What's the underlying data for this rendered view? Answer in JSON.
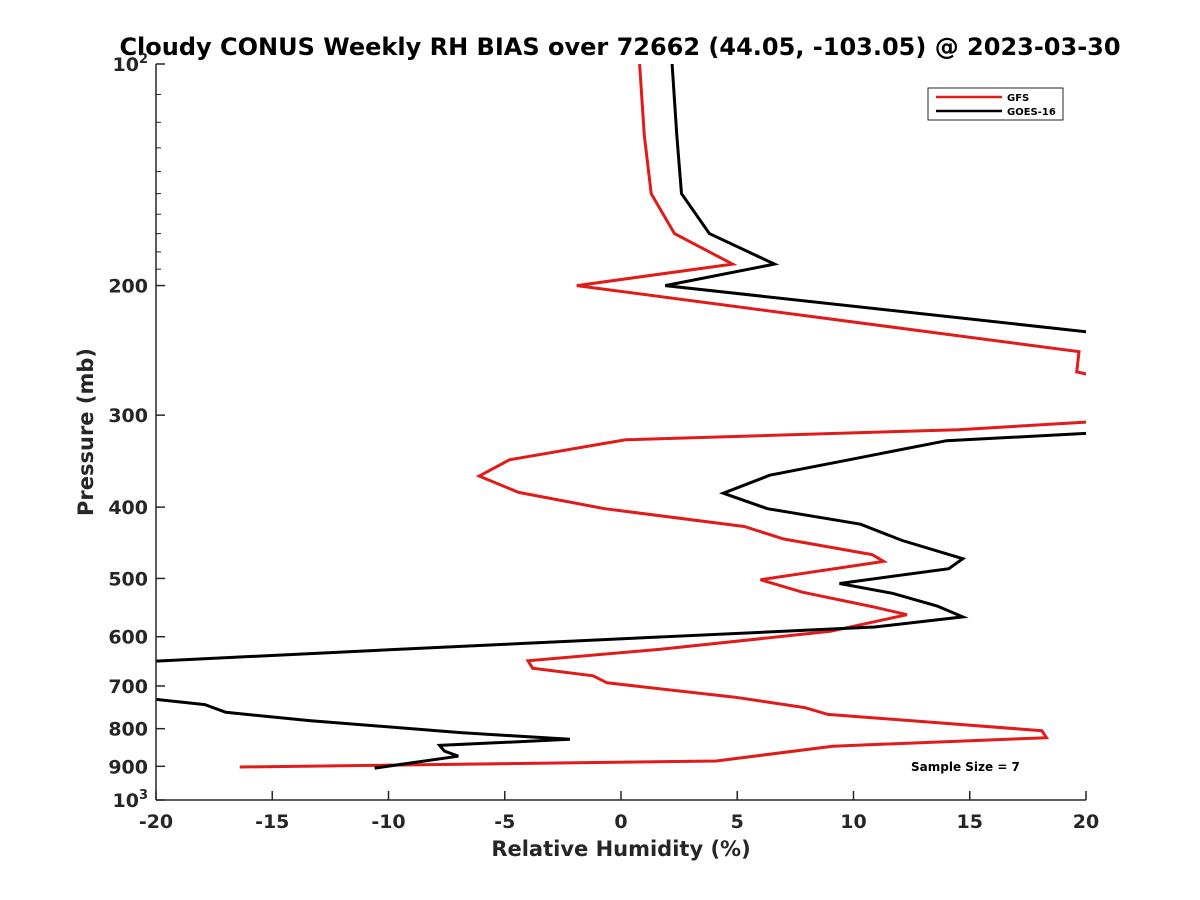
{
  "chart_data": {
    "type": "line",
    "title": "Cloudy CONUS Weekly RH BIAS over 72662 (44.05, -103.05) @ 2023-03-30",
    "xlabel": "Relative Humidity (%)",
    "ylabel": "Pressure (mb)",
    "xlim": [
      -20,
      20
    ],
    "ylim": [
      100,
      1000
    ],
    "y_scale": "log",
    "y_reversed": true,
    "grid": false,
    "legend_position": "top-right",
    "annotation": "Sample Size = 7",
    "x_ticks": [
      -20,
      -15,
      -10,
      -5,
      0,
      5,
      10,
      15,
      20
    ],
    "x_tick_labels": [
      "-20",
      "-15",
      "-10",
      "-5",
      "0",
      "5",
      "10",
      "15",
      "20"
    ],
    "y_ticks": [
      {
        "value": 100,
        "base": "10",
        "exp": "2"
      },
      {
        "value": 200,
        "label": "200"
      },
      {
        "value": 300,
        "label": "300"
      },
      {
        "value": 400,
        "label": "400"
      },
      {
        "value": 500,
        "label": "500"
      },
      {
        "value": 600,
        "label": "600"
      },
      {
        "value": 700,
        "label": "700"
      },
      {
        "value": 800,
        "label": "800"
      },
      {
        "value": 900,
        "label": "900"
      },
      {
        "value": 1000,
        "base": "10",
        "exp": "3"
      }
    ],
    "series": [
      {
        "name": "GFS",
        "color": "#e11a1a",
        "points": [
          [
            0.8,
            100
          ],
          [
            1.0,
            125
          ],
          [
            1.3,
            150
          ],
          [
            2.3,
            170
          ],
          [
            4.8,
            187
          ],
          [
            -1.9,
            200
          ],
          [
            19.7,
            246
          ],
          [
            19.6,
            262
          ],
          [
            20.3,
            265
          ],
          [
            20.5,
            306
          ],
          [
            14.5,
            314
          ],
          [
            0.2,
            324
          ],
          [
            -4.8,
            345
          ],
          [
            -6.1,
            363
          ],
          [
            -4.4,
            382
          ],
          [
            -0.7,
            402
          ],
          [
            5.3,
            425
          ],
          [
            7.0,
            442
          ],
          [
            10.8,
            464
          ],
          [
            11.3,
            474
          ],
          [
            6.0,
            502
          ],
          [
            7.8,
            522
          ],
          [
            10.8,
            546
          ],
          [
            12.3,
            560
          ],
          [
            9.0,
            590
          ],
          [
            1.7,
            624
          ],
          [
            -4.0,
            647
          ],
          [
            -3.8,
            662
          ],
          [
            -1.2,
            678
          ],
          [
            -0.6,
            693
          ],
          [
            4.9,
            725
          ],
          [
            7.9,
            749
          ],
          [
            8.9,
            765
          ],
          [
            18.1,
            805
          ],
          [
            18.3,
            823
          ],
          [
            9.1,
            845
          ],
          [
            4.1,
            885
          ],
          [
            -16.4,
            902
          ]
        ]
      },
      {
        "name": "GOES-16",
        "color": "#000000",
        "points": [
          [
            2.2,
            100
          ],
          [
            2.4,
            125
          ],
          [
            2.6,
            150
          ],
          [
            3.8,
            170
          ],
          [
            6.6,
            187
          ],
          [
            1.9,
            200
          ],
          [
            20.5,
            232
          ],
          [
            20.5,
            317
          ],
          [
            14.0,
            325
          ],
          [
            9.8,
            345
          ],
          [
            6.4,
            362
          ],
          [
            4.4,
            383
          ],
          [
            6.3,
            402
          ],
          [
            10.3,
            422
          ],
          [
            12.1,
            444
          ],
          [
            14.7,
            470
          ],
          [
            14.1,
            485
          ],
          [
            9.4,
            508
          ],
          [
            11.7,
            524
          ],
          [
            13.6,
            545
          ],
          [
            14.7,
            564
          ],
          [
            10.9,
            582
          ],
          [
            -7.7,
            620
          ],
          [
            -20.2,
            648
          ],
          [
            -20.5,
            727
          ],
          [
            -17.9,
            742
          ],
          [
            -17.0,
            760
          ],
          [
            -13.4,
            780
          ],
          [
            -6.9,
            810
          ],
          [
            -2.2,
            827
          ],
          [
            -7.8,
            843
          ],
          [
            -7.6,
            858
          ],
          [
            -7.0,
            872
          ],
          [
            -10.6,
            905
          ]
        ]
      }
    ]
  }
}
